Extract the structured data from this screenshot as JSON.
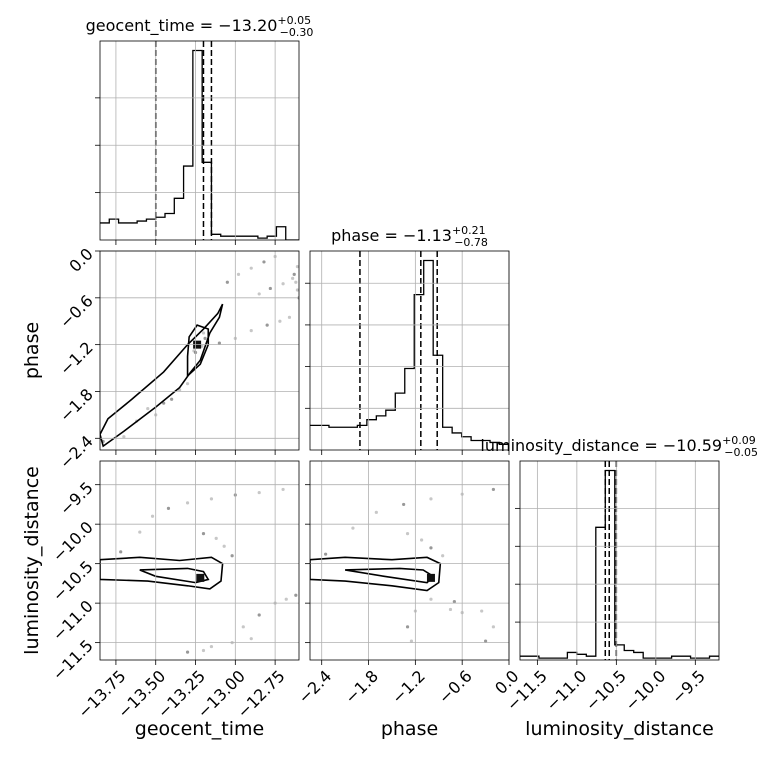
{
  "chart_data": {
    "type": "corner",
    "parameters": [
      "geocent_time",
      "phase",
      "luminosity_distance"
    ],
    "axis_ranges": {
      "geocent_time": [
        -13.85,
        -12.6
      ],
      "phase": [
        -2.55,
        0.0
      ],
      "luminosity_distance": [
        -11.72,
        -9.2
      ]
    },
    "grid": true,
    "panels": [
      {
        "id": "hist-geocent_time",
        "type": "histogram",
        "param": "geocent_time",
        "title": "geocent_time = −13.20",
        "title_sup": "+0.05",
        "title_sub": "−0.30",
        "quantiles": [
          -13.5,
          -13.2,
          -13.15
        ],
        "bin_edges": [
          -13.85,
          -13.7917,
          -13.7333,
          -13.675,
          -13.6167,
          -13.5583,
          -13.5,
          -13.4417,
          -13.3833,
          -13.325,
          -13.2667,
          -13.2083,
          -13.15,
          -13.0917,
          -13.0333,
          -12.975,
          -12.9167,
          -12.8583,
          -12.8,
          -12.7417,
          -12.6833,
          -12.6
        ],
        "counts": [
          0.09,
          0.11,
          0.09,
          0.09,
          0.1,
          0.11,
          0.12,
          0.14,
          0.22,
          0.39,
          1.0,
          0.41,
          0.03,
          0.02,
          0.02,
          0.02,
          0.02,
          0.01,
          0.02,
          0.07,
          0.0
        ],
        "ytick_values": [
          0.25,
          0.5,
          0.75
        ]
      },
      {
        "id": "hist-phase",
        "type": "histogram",
        "param": "phase",
        "title": "phase = −1.13",
        "title_sup": "+0.21",
        "title_sub": "−0.78",
        "quantiles": [
          -1.91,
          -1.13,
          -0.92
        ],
        "bin_edges": [
          -2.55,
          -2.4286,
          -2.3071,
          -2.1857,
          -2.0643,
          -1.9429,
          -1.8214,
          -1.7,
          -1.5786,
          -1.4571,
          -1.3357,
          -1.2143,
          -1.0929,
          -0.9714,
          -0.85,
          -0.7286,
          -0.6071,
          -0.4857,
          -0.3643,
          -0.2429,
          -0.1214,
          0.0
        ],
        "counts": [
          0.13,
          0.13,
          0.12,
          0.12,
          0.12,
          0.13,
          0.16,
          0.18,
          0.21,
          0.3,
          0.43,
          0.82,
          1.0,
          0.5,
          0.12,
          0.09,
          0.07,
          0.05,
          0.05,
          0.04,
          0.03
        ],
        "ytick_values": [
          0.22,
          0.44,
          0.66,
          0.88
        ]
      },
      {
        "id": "hist-luminosity_distance",
        "type": "histogram",
        "param": "luminosity_distance",
        "title": "luminosity_distance = −10.59",
        "title_sup": "+0.09",
        "title_sub": "−0.05",
        "quantiles": [
          -10.64,
          -10.59,
          -10.5
        ],
        "bin_edges": [
          -11.72,
          -11.6,
          -11.48,
          -11.36,
          -11.24,
          -11.12,
          -11.0,
          -10.88,
          -10.76,
          -10.64,
          -10.52,
          -10.4,
          -10.28,
          -10.16,
          -10.04,
          -9.92,
          -9.8,
          -9.68,
          -9.56,
          -9.44,
          -9.32,
          -9.2
        ],
        "counts": [
          0.02,
          0.02,
          0.01,
          0.01,
          0.01,
          0.04,
          0.03,
          0.02,
          0.7,
          1.0,
          0.08,
          0.05,
          0.04,
          0.01,
          0.01,
          0.01,
          0.02,
          0.02,
          0.01,
          0.01,
          0.02
        ],
        "ytick_values": [
          0.2,
          0.4,
          0.6,
          0.8
        ]
      },
      {
        "id": "2d-phase-geocent_time",
        "type": "contour2d",
        "x": "geocent_time",
        "y": "phase",
        "peak": [
          -13.24,
          -1.2
        ],
        "outer_contour": [
          [
            -13.83,
            -2.5
          ],
          [
            -13.7,
            -2.31
          ],
          [
            -13.5,
            -2.0
          ],
          [
            -13.35,
            -1.75
          ],
          [
            -13.28,
            -1.55
          ],
          [
            -13.22,
            -1.4
          ],
          [
            -13.16,
            -1.05
          ],
          [
            -13.1,
            -0.85
          ],
          [
            -13.08,
            -0.68
          ],
          [
            -13.11,
            -0.8
          ],
          [
            -13.2,
            -1.0
          ],
          [
            -13.3,
            -1.2
          ],
          [
            -13.45,
            -1.55
          ],
          [
            -13.65,
            -1.9
          ],
          [
            -13.8,
            -2.15
          ],
          [
            -13.85,
            -2.35
          ]
        ],
        "inner_contour": [
          [
            -13.3,
            -1.6
          ],
          [
            -13.22,
            -1.45
          ],
          [
            -13.17,
            -1.2
          ],
          [
            -13.17,
            -1.0
          ],
          [
            -13.24,
            -0.95
          ],
          [
            -13.29,
            -1.1
          ],
          [
            -13.3,
            -1.35
          ]
        ],
        "scatter": [
          [
            -13.83,
            -2.44
          ],
          [
            -13.7,
            -2.38
          ],
          [
            -13.5,
            -2.1
          ],
          [
            -13.4,
            -1.9
          ],
          [
            -13.35,
            -1.78
          ],
          [
            -13.3,
            -1.7
          ],
          [
            -13.45,
            -1.95
          ],
          [
            -13.62,
            -2.18
          ],
          [
            -13.55,
            -2.02
          ],
          [
            -13.25,
            -1.3
          ],
          [
            -13.21,
            -1.22
          ],
          [
            -13.23,
            -1.18
          ],
          [
            -13.19,
            -1.12
          ],
          [
            -13.2,
            -1.05
          ],
          [
            -13.26,
            -1.28
          ],
          [
            -13.1,
            -1.18
          ],
          [
            -13.0,
            -1.12
          ],
          [
            -12.9,
            -1.02
          ],
          [
            -12.8,
            -0.95
          ],
          [
            -12.72,
            -0.9
          ],
          [
            -12.66,
            -0.85
          ],
          [
            -13.05,
            -0.4
          ],
          [
            -12.98,
            -0.3
          ],
          [
            -12.9,
            -0.22
          ],
          [
            -12.82,
            -0.14
          ],
          [
            -12.75,
            -0.07
          ],
          [
            -12.85,
            -0.55
          ],
          [
            -12.78,
            -0.48
          ],
          [
            -12.7,
            -0.42
          ],
          [
            -12.64,
            -0.35
          ],
          [
            -12.63,
            -0.3
          ],
          [
            -12.62,
            -0.4
          ],
          [
            -12.61,
            -0.5
          ],
          [
            -12.6,
            -0.6
          ],
          [
            -12.61,
            -0.2
          ]
        ]
      },
      {
        "id": "2d-ld-geocent_time",
        "type": "contour2d",
        "x": "geocent_time",
        "y": "luminosity_distance",
        "peak": [
          -13.22,
          -10.68
        ],
        "outer_contour": [
          [
            -13.85,
            -10.45
          ],
          [
            -13.6,
            -10.42
          ],
          [
            -13.35,
            -10.46
          ],
          [
            -13.15,
            -10.42
          ],
          [
            -13.08,
            -10.5
          ],
          [
            -13.09,
            -10.72
          ],
          [
            -13.16,
            -10.82
          ],
          [
            -13.3,
            -10.78
          ],
          [
            -13.55,
            -10.72
          ],
          [
            -13.85,
            -10.7
          ]
        ],
        "inner_contour": [
          [
            -13.6,
            -10.58
          ],
          [
            -13.3,
            -10.56
          ],
          [
            -13.2,
            -10.6
          ],
          [
            -13.17,
            -10.7
          ],
          [
            -13.25,
            -10.74
          ],
          [
            -13.5,
            -10.66
          ]
        ],
        "scatter": [
          [
            -13.72,
            -10.35
          ],
          [
            -13.6,
            -10.1
          ],
          [
            -13.52,
            -9.9
          ],
          [
            -13.42,
            -9.8
          ],
          [
            -13.3,
            -9.73
          ],
          [
            -13.15,
            -9.68
          ],
          [
            -13.0,
            -9.63
          ],
          [
            -12.85,
            -9.6
          ],
          [
            -12.7,
            -9.56
          ],
          [
            -13.2,
            -10.12
          ],
          [
            -13.12,
            -10.18
          ],
          [
            -13.07,
            -10.28
          ],
          [
            -13.02,
            -10.4
          ],
          [
            -13.02,
            -11.5
          ],
          [
            -12.95,
            -11.3
          ],
          [
            -12.85,
            -11.15
          ],
          [
            -12.75,
            -11.0
          ],
          [
            -12.68,
            -10.95
          ],
          [
            -12.62,
            -10.9
          ],
          [
            -13.2,
            -11.6
          ],
          [
            -13.15,
            -11.55
          ],
          [
            -13.3,
            -11.62
          ],
          [
            -12.9,
            -11.45
          ]
        ]
      },
      {
        "id": "2d-ld-phase",
        "type": "contour2d",
        "x": "phase",
        "y": "luminosity_distance",
        "peak": [
          -1.0,
          -10.68
        ],
        "outer_contour": [
          [
            -2.55,
            -10.45
          ],
          [
            -2.1,
            -10.42
          ],
          [
            -1.5,
            -10.45
          ],
          [
            -1.05,
            -10.42
          ],
          [
            -0.88,
            -10.5
          ],
          [
            -0.9,
            -10.74
          ],
          [
            -1.05,
            -10.84
          ],
          [
            -1.5,
            -10.78
          ],
          [
            -2.1,
            -10.72
          ],
          [
            -2.55,
            -10.7
          ]
        ],
        "inner_contour": [
          [
            -2.1,
            -10.58
          ],
          [
            -1.4,
            -10.56
          ],
          [
            -1.1,
            -10.58
          ],
          [
            -0.97,
            -10.66
          ],
          [
            -1.05,
            -10.74
          ],
          [
            -1.6,
            -10.66
          ]
        ],
        "scatter": [
          [
            -2.35,
            -10.38
          ],
          [
            -2.0,
            -10.05
          ],
          [
            -1.7,
            -9.85
          ],
          [
            -1.35,
            -9.75
          ],
          [
            -1.0,
            -9.68
          ],
          [
            -0.6,
            -9.62
          ],
          [
            -0.2,
            -9.56
          ],
          [
            -1.3,
            -10.12
          ],
          [
            -1.12,
            -10.2
          ],
          [
            -1.0,
            -10.3
          ],
          [
            -0.85,
            -10.4
          ],
          [
            -1.25,
            -11.48
          ],
          [
            -1.3,
            -11.3
          ],
          [
            -1.2,
            -11.1
          ],
          [
            -1.0,
            -10.95
          ],
          [
            -0.7,
            -10.98
          ],
          [
            -0.35,
            -11.1
          ],
          [
            -0.2,
            -11.3
          ],
          [
            -0.3,
            -11.48
          ],
          [
            -0.75,
            -11.08
          ],
          [
            -0.6,
            -11.12
          ]
        ]
      }
    ]
  },
  "axes": {
    "xlabels": [
      "geocent_time",
      "phase",
      "luminosity_distance"
    ],
    "ylabels": [
      "phase",
      "luminosity_distance"
    ],
    "xticks": {
      "geocent_time": [
        {
          "v": -13.75,
          "label": "−13.75"
        },
        {
          "v": -13.5,
          "label": "−13.50"
        },
        {
          "v": -13.25,
          "label": "−13.25"
        },
        {
          "v": -13.0,
          "label": "−13.00"
        },
        {
          "v": -12.75,
          "label": "−12.75"
        }
      ],
      "phase": [
        {
          "v": -2.4,
          "label": "−2.4"
        },
        {
          "v": -1.8,
          "label": "−1.8"
        },
        {
          "v": -1.2,
          "label": "−1.2"
        },
        {
          "v": -0.6,
          "label": "−0.6"
        },
        {
          "v": 0.0,
          "label": "0.0"
        }
      ],
      "luminosity_distance": [
        {
          "v": -11.5,
          "label": "−11.5"
        },
        {
          "v": -11.0,
          "label": "−11.0"
        },
        {
          "v": -10.5,
          "label": "−10.5"
        },
        {
          "v": -10.0,
          "label": "−10.0"
        },
        {
          "v": -9.5,
          "label": "−9.5"
        }
      ]
    },
    "yticks": {
      "phase": [
        {
          "v": 0.0,
          "label": "0.0"
        },
        {
          "v": -0.6,
          "label": "−0.6"
        },
        {
          "v": -1.2,
          "label": "−1.2"
        },
        {
          "v": -1.8,
          "label": "−1.8"
        },
        {
          "v": -2.4,
          "label": "−2.4"
        }
      ],
      "luminosity_distance": [
        {
          "v": -9.5,
          "label": "−9.5"
        },
        {
          "v": -10.0,
          "label": "−10.0"
        },
        {
          "v": -10.5,
          "label": "−10.5"
        },
        {
          "v": -11.0,
          "label": "−11.0"
        },
        {
          "v": -11.5,
          "label": "−11.5"
        }
      ]
    }
  }
}
